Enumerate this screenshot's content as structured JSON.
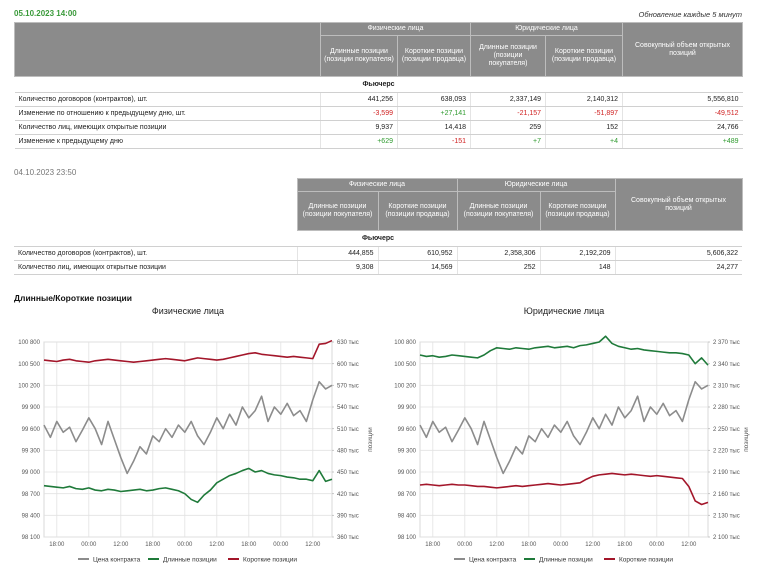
{
  "header": {
    "date": "05.10.2023 14:00",
    "update_note": "Обновление каждые 5 минут"
  },
  "table1": {
    "group_headers": [
      "Физические лица",
      "Юридические лица"
    ],
    "sub_headers": [
      "Длинные позиции (позиции покупателя)",
      "Короткие позиции (позиции продавца)",
      "Длинные позиции (позиции покупателя)",
      "Короткие позиции (позиции продавца)"
    ],
    "total_header": "Совокупный объем открытых позиций",
    "section": "Фьючерс",
    "rows": [
      [
        "Количество договоров (контрактов), шт.",
        "441,256",
        "638,093",
        "2,337,149",
        "2,140,312",
        "5,556,810"
      ],
      [
        "Изменение по отношению к предыдущему дню, шт.",
        "-3,599",
        "+27,141",
        "-21,157",
        "-51,897",
        "-49,512"
      ],
      [
        "Количество лиц, имеющих открытые позиции",
        "9,937",
        "14,418",
        "259",
        "152",
        "24,766"
      ],
      [
        "Изменение к предыдущему дню",
        "+629",
        "-151",
        "+7",
        "+4",
        "+489"
      ]
    ]
  },
  "table2": {
    "date": "04.10.2023 23:50",
    "group_headers": [
      "Физические лица",
      "Юридические лица"
    ],
    "sub_headers": [
      "Длинные позиции (позиции покупателя)",
      "Короткие позиции (позиции продавца)",
      "Длинные позиции (позиции покупателя)",
      "Короткие позиции (позиции продавца)"
    ],
    "total_header": "Совокупный объем открытых позиций",
    "section": "Фьючерс",
    "rows": [
      [
        "Количество договоров (контрактов), шт.",
        "444,855",
        "610,952",
        "2,358,306",
        "2,192,209",
        "5,606,322"
      ],
      [
        "Количество лиц, имеющих открытые позиции",
        "9,308",
        "14,569",
        "252",
        "148",
        "24,277"
      ]
    ]
  },
  "section_title": "Длинные/Короткие позиции",
  "chart_data": [
    {
      "type": "line",
      "title": "Физические лица",
      "y2_label": "позиции",
      "grid": true,
      "categories": [
        null,
        null,
        "18:00",
        null,
        null,
        null,
        null,
        "00:00",
        null,
        null,
        null,
        null,
        "12:00",
        null,
        null,
        null,
        null,
        "18:00",
        null,
        null,
        null,
        null,
        "00:00",
        null,
        null,
        null,
        null,
        "12:00",
        null,
        null,
        null,
        null,
        "18:00",
        null,
        null,
        null,
        null,
        "00:00",
        null,
        null,
        null,
        null,
        "12:00",
        null,
        null,
        null
      ],
      "ylim": [
        98100,
        100800
      ],
      "yticks": [
        {
          "value": 98100,
          "label": "98 100"
        },
        {
          "value": 98400,
          "label": "98 400"
        },
        {
          "value": 98700,
          "label": "98 700"
        },
        {
          "value": 99000,
          "label": "99 000"
        },
        {
          "value": 99300,
          "label": "99 300"
        },
        {
          "value": 99600,
          "label": "99 600"
        },
        {
          "value": 99900,
          "label": "99 900"
        },
        {
          "value": 100200,
          "label": "100 200"
        },
        {
          "value": 100500,
          "label": "100 500"
        },
        {
          "value": 100800,
          "label": "100 800"
        }
      ],
      "y2lim": [
        360000,
        630000
      ],
      "y2ticks": [
        {
          "value": 360000,
          "label": "360 тыс"
        },
        {
          "value": 390000,
          "label": "390 тыс"
        },
        {
          "value": 420000,
          "label": "420 тыс"
        },
        {
          "value": 450000,
          "label": "450 тыс"
        },
        {
          "value": 480000,
          "label": "480 тыс"
        },
        {
          "value": 510000,
          "label": "510 тыс"
        },
        {
          "value": 540000,
          "label": "540 тыс"
        },
        {
          "value": 570000,
          "label": "570 тыс"
        },
        {
          "value": 600000,
          "label": "600 тыс"
        },
        {
          "value": 630000,
          "label": "630 тыс"
        }
      ],
      "series": [
        {
          "name": "Цена контракта",
          "color": "#8c8c8c",
          "values": [
            99650,
            99480,
            99700,
            99550,
            99620,
            99420,
            99580,
            99750,
            99600,
            99380,
            99700,
            99450,
            99200,
            98980,
            99150,
            99350,
            99250,
            99500,
            99420,
            99600,
            99480,
            99650,
            99550,
            99700,
            99500,
            99380,
            99550,
            99750,
            99600,
            99800,
            99650,
            99900,
            99750,
            99850,
            100050,
            99700,
            99900,
            99800,
            99950,
            99780,
            99850,
            99700,
            100000,
            100250,
            100150,
            100200
          ]
        },
        {
          "name": "Длинные позиции",
          "color": "#1f7a3a",
          "axis": "y2",
          "values": [
            431000,
            430000,
            429000,
            428000,
            430000,
            427000,
            426000,
            428000,
            425000,
            424000,
            426000,
            425000,
            423000,
            424000,
            425000,
            426000,
            424000,
            425000,
            427000,
            428000,
            426000,
            424000,
            420000,
            412000,
            408000,
            418000,
            425000,
            435000,
            440000,
            445000,
            448000,
            452000,
            455000,
            450000,
            452000,
            448000,
            446000,
            445000,
            443000,
            442000,
            440000,
            440000,
            438000,
            452000,
            437000,
            440000
          ]
        },
        {
          "name": "Короткие позиции",
          "color": "#a3162a",
          "axis": "y2",
          "values": [
            605000,
            604000,
            603000,
            605000,
            606000,
            604000,
            603000,
            602000,
            604000,
            605000,
            606000,
            605000,
            604000,
            603000,
            602000,
            603000,
            604000,
            605000,
            606000,
            607000,
            606000,
            605000,
            604000,
            606000,
            608000,
            607000,
            606000,
            605000,
            606000,
            608000,
            610000,
            612000,
            614000,
            615000,
            613000,
            612000,
            611000,
            610000,
            609000,
            610000,
            609000,
            608000,
            607000,
            627000,
            628000,
            632000
          ]
        }
      ]
    },
    {
      "type": "line",
      "title": "Юридические лица",
      "y2_label": "позиции",
      "grid": true,
      "categories": [
        null,
        null,
        "18:00",
        null,
        null,
        null,
        null,
        "00:00",
        null,
        null,
        null,
        null,
        "12:00",
        null,
        null,
        null,
        null,
        "18:00",
        null,
        null,
        null,
        null,
        "00:00",
        null,
        null,
        null,
        null,
        "12:00",
        null,
        null,
        null,
        null,
        "18:00",
        null,
        null,
        null,
        null,
        "00:00",
        null,
        null,
        null,
        null,
        "12:00",
        null,
        null,
        null
      ],
      "ylim": [
        98100,
        100800
      ],
      "yticks": [
        {
          "value": 98100,
          "label": "98 100"
        },
        {
          "value": 98400,
          "label": "98 400"
        },
        {
          "value": 98700,
          "label": "98 700"
        },
        {
          "value": 99000,
          "label": "99 000"
        },
        {
          "value": 99300,
          "label": "99 300"
        },
        {
          "value": 99600,
          "label": "99 600"
        },
        {
          "value": 99900,
          "label": "99 900"
        },
        {
          "value": 100200,
          "label": "100 200"
        },
        {
          "value": 100500,
          "label": "100 500"
        },
        {
          "value": 100800,
          "label": "100 800"
        }
      ],
      "y2lim": [
        2100000,
        2370000
      ],
      "y2ticks": [
        {
          "value": 2100000,
          "label": "2 100 тыс"
        },
        {
          "value": 2130000,
          "label": "2 130 тыс"
        },
        {
          "value": 2160000,
          "label": "2 160 тыс"
        },
        {
          "value": 2190000,
          "label": "2 190 тыс"
        },
        {
          "value": 2220000,
          "label": "2 220 тыс"
        },
        {
          "value": 2250000,
          "label": "2 250 тыс"
        },
        {
          "value": 2280000,
          "label": "2 280 тыс"
        },
        {
          "value": 2310000,
          "label": "2 310 тыс"
        },
        {
          "value": 2340000,
          "label": "2 340 тыс"
        },
        {
          "value": 2370000,
          "label": "2 370 тыс"
        }
      ],
      "series": [
        {
          "name": "Цена контракта",
          "color": "#8c8c8c",
          "values": [
            99650,
            99480,
            99700,
            99550,
            99620,
            99420,
            99580,
            99750,
            99600,
            99380,
            99700,
            99450,
            99200,
            98980,
            99150,
            99350,
            99250,
            99500,
            99420,
            99600,
            99480,
            99650,
            99550,
            99700,
            99500,
            99380,
            99550,
            99750,
            99600,
            99800,
            99650,
            99900,
            99750,
            99850,
            100050,
            99700,
            99900,
            99800,
            99950,
            99780,
            99850,
            99700,
            100000,
            100250,
            100150,
            100200
          ]
        },
        {
          "name": "Длинные позиции",
          "color": "#1f7a3a",
          "axis": "y2",
          "values": [
            2352000,
            2350000,
            2351000,
            2349000,
            2350000,
            2352000,
            2351000,
            2350000,
            2349000,
            2348000,
            2352000,
            2358000,
            2362000,
            2361000,
            2360000,
            2362000,
            2361000,
            2360000,
            2362000,
            2363000,
            2364000,
            2362000,
            2363000,
            2364000,
            2362000,
            2365000,
            2366000,
            2368000,
            2370000,
            2378000,
            2368000,
            2364000,
            2362000,
            2360000,
            2361000,
            2359000,
            2358000,
            2357000,
            2356000,
            2355000,
            2355000,
            2354000,
            2352000,
            2340000,
            2348000,
            2338000
          ]
        },
        {
          "name": "Короткие позиции",
          "color": "#a3162a",
          "axis": "y2",
          "values": [
            2172000,
            2173000,
            2172000,
            2171000,
            2172000,
            2173000,
            2172000,
            2172000,
            2171000,
            2170000,
            2170000,
            2169000,
            2168000,
            2169000,
            2170000,
            2171000,
            2170000,
            2171000,
            2172000,
            2173000,
            2174000,
            2173000,
            2172000,
            2173000,
            2174000,
            2175000,
            2180000,
            2184000,
            2186000,
            2187000,
            2188000,
            2187000,
            2186000,
            2187000,
            2186000,
            2185000,
            2184000,
            2185000,
            2184000,
            2183000,
            2182000,
            2181000,
            2170000,
            2150000,
            2145000,
            2148000
          ]
        }
      ]
    }
  ]
}
